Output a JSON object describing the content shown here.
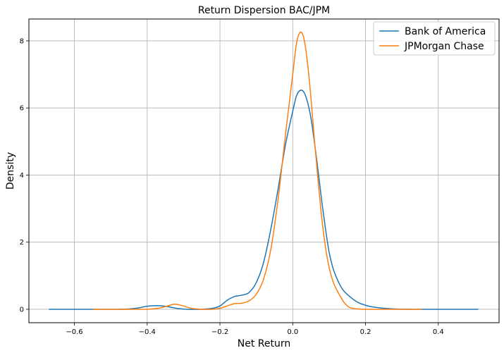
{
  "chart_data": {
    "type": "line",
    "title": "Return Dispersion BAC/JPM",
    "xlabel": "Net Return",
    "ylabel": "Density",
    "xlim": [
      -0.725,
      0.567
    ],
    "ylim": [
      -0.4,
      8.65
    ],
    "xticks": [
      -0.6,
      -0.4,
      -0.2,
      0.0,
      0.2,
      0.4
    ],
    "xtick_labels": [
      "−0.6",
      "−0.4",
      "−0.2",
      "0.0",
      "0.2",
      "0.4"
    ],
    "yticks": [
      0,
      2,
      4,
      6,
      8
    ],
    "ytick_labels": [
      "0",
      "2",
      "4",
      "6",
      "8"
    ],
    "grid": true,
    "legend_position": "top-right",
    "series": [
      {
        "name": "Bank of America",
        "color": "#1f77b4",
        "points": [
          [
            -0.67,
            0.0
          ],
          [
            -0.55,
            0.0
          ],
          [
            -0.47,
            0.0
          ],
          [
            -0.43,
            0.03
          ],
          [
            -0.4,
            0.09
          ],
          [
            -0.375,
            0.11
          ],
          [
            -0.35,
            0.09
          ],
          [
            -0.32,
            0.03
          ],
          [
            -0.29,
            0.0
          ],
          [
            -0.25,
            0.0
          ],
          [
            -0.22,
            0.03
          ],
          [
            -0.2,
            0.1
          ],
          [
            -0.18,
            0.27
          ],
          [
            -0.16,
            0.38
          ],
          [
            -0.14,
            0.42
          ],
          [
            -0.12,
            0.5
          ],
          [
            -0.1,
            0.8
          ],
          [
            -0.08,
            1.4
          ],
          [
            -0.06,
            2.4
          ],
          [
            -0.04,
            3.6
          ],
          [
            -0.02,
            4.9
          ],
          [
            0.0,
            5.9
          ],
          [
            0.01,
            6.35
          ],
          [
            0.02,
            6.52
          ],
          [
            0.03,
            6.48
          ],
          [
            0.04,
            6.2
          ],
          [
            0.05,
            5.7
          ],
          [
            0.06,
            4.95
          ],
          [
            0.07,
            4.1
          ],
          [
            0.08,
            3.2
          ],
          [
            0.09,
            2.4
          ],
          [
            0.1,
            1.7
          ],
          [
            0.11,
            1.25
          ],
          [
            0.12,
            0.95
          ],
          [
            0.13,
            0.72
          ],
          [
            0.14,
            0.55
          ],
          [
            0.16,
            0.35
          ],
          [
            0.18,
            0.2
          ],
          [
            0.2,
            0.12
          ],
          [
            0.22,
            0.07
          ],
          [
            0.25,
            0.03
          ],
          [
            0.28,
            0.01
          ],
          [
            0.32,
            0.0
          ],
          [
            0.4,
            0.0
          ],
          [
            0.51,
            0.0
          ]
        ]
      },
      {
        "name": "JPMorgan Chase",
        "color": "#ff7f0e",
        "points": [
          [
            -0.55,
            0.0
          ],
          [
            -0.45,
            0.0
          ],
          [
            -0.4,
            0.0
          ],
          [
            -0.37,
            0.03
          ],
          [
            -0.35,
            0.08
          ],
          [
            -0.325,
            0.15
          ],
          [
            -0.3,
            0.1
          ],
          [
            -0.28,
            0.03
          ],
          [
            -0.25,
            0.0
          ],
          [
            -0.22,
            0.0
          ],
          [
            -0.2,
            0.03
          ],
          [
            -0.18,
            0.1
          ],
          [
            -0.16,
            0.17
          ],
          [
            -0.14,
            0.18
          ],
          [
            -0.12,
            0.25
          ],
          [
            -0.1,
            0.45
          ],
          [
            -0.08,
            0.9
          ],
          [
            -0.06,
            1.8
          ],
          [
            -0.04,
            3.3
          ],
          [
            -0.02,
            5.2
          ],
          [
            0.0,
            7.0
          ],
          [
            0.01,
            7.9
          ],
          [
            0.02,
            8.25
          ],
          [
            0.03,
            8.1
          ],
          [
            0.04,
            7.4
          ],
          [
            0.05,
            6.3
          ],
          [
            0.06,
            5.0
          ],
          [
            0.07,
            3.8
          ],
          [
            0.08,
            2.7
          ],
          [
            0.09,
            1.85
          ],
          [
            0.1,
            1.25
          ],
          [
            0.11,
            0.85
          ],
          [
            0.12,
            0.6
          ],
          [
            0.13,
            0.4
          ],
          [
            0.14,
            0.22
          ],
          [
            0.15,
            0.1
          ],
          [
            0.16,
            0.04
          ],
          [
            0.18,
            0.01
          ],
          [
            0.2,
            0.0
          ],
          [
            0.28,
            0.0
          ],
          [
            0.355,
            0.0
          ]
        ]
      }
    ]
  }
}
